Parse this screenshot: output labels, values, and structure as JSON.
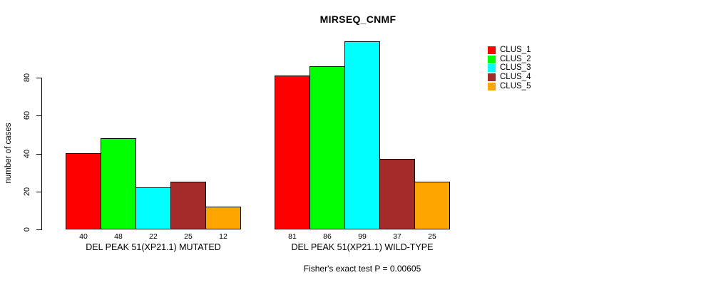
{
  "chart_data": {
    "type": "bar",
    "title": "MIRSEQ_CNMF",
    "ylabel": "number of cases",
    "xlabel": "",
    "caption": "Fisher's exact test P = 0.00605",
    "yticks": [
      0,
      20,
      40,
      60,
      80
    ],
    "ylim": [
      0,
      105
    ],
    "grid": false,
    "legend_position": "right",
    "legend": [
      "CLUS_1",
      "CLUS_2",
      "CLUS_3",
      "CLUS_4",
      "CLUS_5"
    ],
    "series_colors": [
      "#ff0000",
      "#00ff00",
      "#00ffff",
      "#a52a2a",
      "#ffa500"
    ],
    "groups": [
      {
        "label": "DEL PEAK 51(XP21.1) MUTATED",
        "values": [
          40,
          48,
          22,
          25,
          12
        ]
      },
      {
        "label": "DEL PEAK 51(XP21.1) WILD-TYPE",
        "values": [
          81,
          86,
          99,
          37,
          25
        ]
      }
    ],
    "bar_value_labels": true
  },
  "colors": {
    "background": "#ffffff",
    "axis": "#000000",
    "bar_border": "#000000",
    "text": "#000000"
  }
}
